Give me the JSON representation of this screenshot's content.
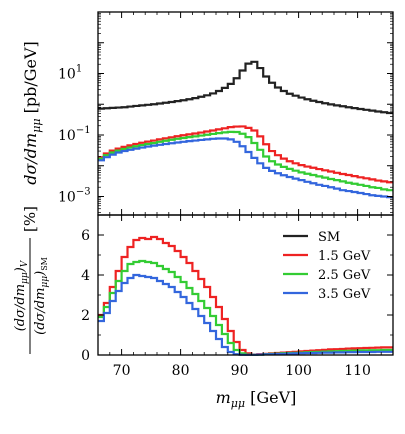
{
  "chart_data": [
    {
      "type": "line",
      "panel": "top",
      "ylabel": "dσ/dm_μμ [pb/GeV]",
      "yscale": "log",
      "ylim": [
        0.00025,
        1000
      ],
      "yticks": [
        0.001,
        0.1,
        10
      ],
      "ytick_labels": [
        "10",
        "10",
        "10"
      ],
      "ytick_exponents": [
        "−3",
        "−1",
        "1"
      ],
      "xlim": [
        66,
        116
      ],
      "xstep": 1,
      "x_start": 66,
      "series": [
        {
          "name": "SM",
          "color": "#222222",
          "values": [
            0.72,
            0.74,
            0.76,
            0.78,
            0.8,
            0.84,
            0.88,
            0.92,
            0.96,
            1.0,
            1.06,
            1.12,
            1.18,
            1.26,
            1.35,
            1.45,
            1.58,
            1.75,
            1.95,
            2.25,
            2.7,
            3.4,
            4.6,
            7.0,
            12.5,
            21.0,
            24.0,
            15.0,
            8.0,
            5.0,
            3.5,
            2.7,
            2.2,
            1.9,
            1.65,
            1.45,
            1.3,
            1.18,
            1.08,
            0.99,
            0.92,
            0.86,
            0.8,
            0.75,
            0.7,
            0.66,
            0.62,
            0.58,
            0.55,
            0.52
          ]
        },
        {
          "name": "1.5 GeV",
          "color": "#ee2222",
          "values": [
            0.019,
            0.025,
            0.031,
            0.036,
            0.041,
            0.046,
            0.051,
            0.056,
            0.061,
            0.066,
            0.072,
            0.078,
            0.084,
            0.091,
            0.098,
            0.105,
            0.112,
            0.12,
            0.13,
            0.14,
            0.152,
            0.165,
            0.18,
            0.188,
            0.19,
            0.17,
            0.14,
            0.09,
            0.05,
            0.03,
            0.022,
            0.017,
            0.014,
            0.012,
            0.0105,
            0.0094,
            0.0086,
            0.0078,
            0.0071,
            0.0065,
            0.0059,
            0.0054,
            0.005,
            0.0046,
            0.0042,
            0.0039,
            0.0036,
            0.0033,
            0.0031,
            0.0029
          ]
        },
        {
          "name": "2.5 GeV",
          "color": "#33cc33",
          "values": [
            0.017,
            0.022,
            0.027,
            0.031,
            0.035,
            0.039,
            0.043,
            0.047,
            0.051,
            0.055,
            0.06,
            0.065,
            0.07,
            0.075,
            0.08,
            0.085,
            0.09,
            0.096,
            0.102,
            0.108,
            0.115,
            0.122,
            0.126,
            0.125,
            0.11,
            0.085,
            0.055,
            0.033,
            0.02,
            0.014,
            0.011,
            0.0092,
            0.0079,
            0.0069,
            0.0061,
            0.0055,
            0.005,
            0.0045,
            0.0041,
            0.0037,
            0.0034,
            0.0031,
            0.0028,
            0.0026,
            0.0024,
            0.0022,
            0.002,
            0.0019,
            0.0017,
            0.0016
          ]
        },
        {
          "name": "3.5 GeV",
          "color": "#3366dd",
          "values": [
            0.015,
            0.019,
            0.023,
            0.027,
            0.03,
            0.033,
            0.036,
            0.039,
            0.042,
            0.045,
            0.048,
            0.051,
            0.054,
            0.057,
            0.06,
            0.063,
            0.066,
            0.069,
            0.072,
            0.075,
            0.077,
            0.077,
            0.072,
            0.06,
            0.043,
            0.028,
            0.018,
            0.012,
            0.0085,
            0.0068,
            0.0057,
            0.0049,
            0.0043,
            0.0038,
            0.0034,
            0.003,
            0.0027,
            0.0024,
            0.0022,
            0.002,
            0.0018,
            0.0016,
            0.0015,
            0.0014,
            0.0013,
            0.0012,
            0.0011,
            0.00105,
            0.001,
            0.00095
          ]
        }
      ]
    },
    {
      "type": "line",
      "panel": "bottom",
      "ylabel": "(dσ/dm_μμ)_V / (dσ/dm_μμ)_SM [%]",
      "xlabel": "m_μμ [GeV]",
      "ylim": [
        0,
        7
      ],
      "yticks": [
        0,
        2,
        4,
        6
      ],
      "ytick_labels": [
        "0",
        "2",
        "4",
        "6"
      ],
      "xlim": [
        66,
        116
      ],
      "xticks": [
        70,
        80,
        90,
        100,
        110
      ],
      "xtick_labels": [
        "70",
        "80",
        "90",
        "100",
        "110"
      ],
      "xstep": 1,
      "x_start": 66,
      "legend": {
        "position": "top-right",
        "entries": [
          "SM",
          "1.5 GeV",
          "2.5 GeV",
          "3.5 GeV"
        ]
      },
      "series": [
        {
          "name": "1.5 GeV",
          "color": "#ee2222",
          "values": [
            2.0,
            2.6,
            3.4,
            4.2,
            4.9,
            5.4,
            5.75,
            5.85,
            5.8,
            5.9,
            5.8,
            5.6,
            5.45,
            5.2,
            4.9,
            4.6,
            4.2,
            3.8,
            3.4,
            2.9,
            2.4,
            1.8,
            1.2,
            0.65,
            0.25,
            0.08,
            0.02,
            0.04,
            0.06,
            0.08,
            0.1,
            0.12,
            0.14,
            0.16,
            0.18,
            0.2,
            0.22,
            0.24,
            0.26,
            0.28,
            0.29,
            0.3,
            0.32,
            0.33,
            0.34,
            0.35,
            0.36,
            0.37,
            0.38,
            0.38
          ]
        },
        {
          "name": "2.5 GeV",
          "color": "#33cc33",
          "values": [
            1.9,
            2.4,
            3.1,
            3.7,
            4.2,
            4.55,
            4.65,
            4.7,
            4.65,
            4.6,
            4.45,
            4.3,
            4.15,
            3.9,
            3.65,
            3.35,
            3.05,
            2.7,
            2.35,
            1.95,
            1.5,
            1.05,
            0.6,
            0.25,
            0.08,
            0.02,
            0.01,
            0.02,
            0.04,
            0.06,
            0.07,
            0.09,
            0.1,
            0.11,
            0.12,
            0.14,
            0.15,
            0.16,
            0.17,
            0.18,
            0.19,
            0.2,
            0.21,
            0.22,
            0.23,
            0.23,
            0.24,
            0.24,
            0.25,
            0.25
          ]
        },
        {
          "name": "3.5 GeV",
          "color": "#3366dd",
          "values": [
            1.7,
            2.1,
            2.7,
            3.2,
            3.6,
            3.85,
            4.0,
            3.95,
            3.9,
            3.85,
            3.7,
            3.55,
            3.4,
            3.15,
            2.9,
            2.6,
            2.3,
            1.95,
            1.6,
            1.2,
            0.8,
            0.4,
            0.15,
            0.04,
            0.01,
            0.01,
            0.01,
            0.02,
            0.03,
            0.04,
            0.05,
            0.06,
            0.07,
            0.08,
            0.09,
            0.1,
            0.1,
            0.11,
            0.12,
            0.12,
            0.13,
            0.13,
            0.14,
            0.14,
            0.15,
            0.15,
            0.15,
            0.16,
            0.16,
            0.16
          ]
        }
      ]
    }
  ]
}
